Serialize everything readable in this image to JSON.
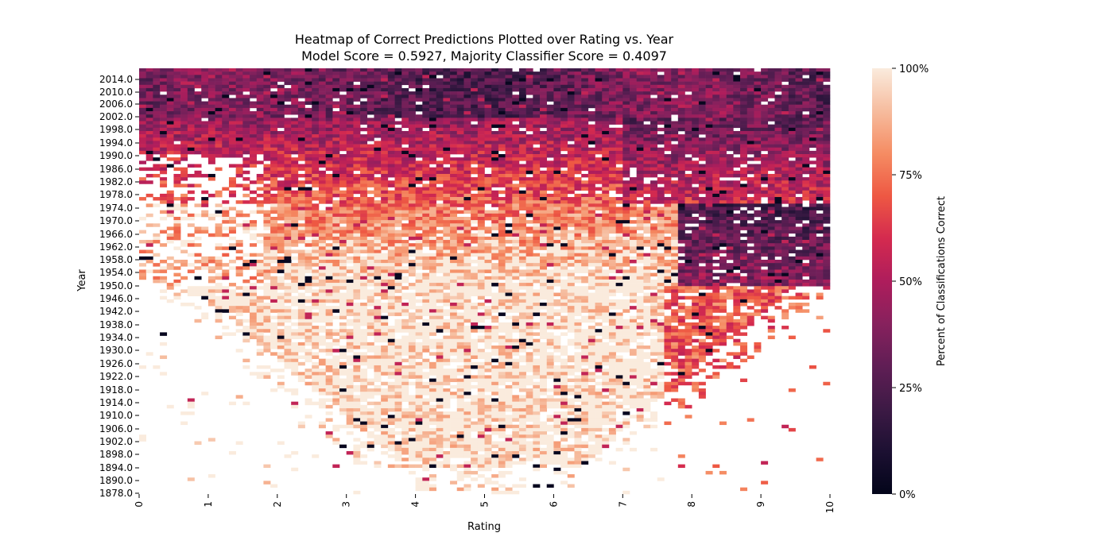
{
  "chart_data": {
    "type": "heatmap",
    "title_line1": "Heatmap of Correct Predictions Plotted over Rating vs. Year",
    "title_line2": "Model Score = 0.5927, Majority Classifier Score = 0.4097",
    "xlabel": "Rating",
    "ylabel": "Year",
    "xlim": [
      0,
      10
    ],
    "x_ticks": [
      "0",
      "1",
      "2",
      "3",
      "4",
      "5",
      "6",
      "7",
      "8",
      "9",
      "10"
    ],
    "y_ticks": [
      "2014.0",
      "2010.0",
      "2006.0",
      "2002.0",
      "1998.0",
      "1994.0",
      "1990.0",
      "1986.0",
      "1982.0",
      "1978.0",
      "1974.0",
      "1970.0",
      "1966.0",
      "1962.0",
      "1958.0",
      "1954.0",
      "1950.0",
      "1946.0",
      "1942.0",
      "1938.0",
      "1934.0",
      "1930.0",
      "1926.0",
      "1922.0",
      "1918.0",
      "1914.0",
      "1910.0",
      "1906.0",
      "1902.0",
      "1898.0",
      "1894.0",
      "1890.0",
      "1878.0"
    ],
    "colorbar": {
      "label": "Percent of Classifications Correct",
      "ticks": [
        "0%",
        "25%",
        "50%",
        "75%",
        "100%"
      ],
      "range": [
        0,
        100
      ],
      "colormap": "rocket"
    },
    "cell_grid": {
      "columns": 100,
      "rows": 129
    },
    "value_regions": [
      {
        "description_years": "2002-2017",
        "rating_range": [
          0,
          10
        ],
        "approx_percent": 30
      },
      {
        "description_years": "1975-2002",
        "rating_range": [
          2,
          10
        ],
        "approx_percent": 45
      },
      {
        "description_years": "1950-1975",
        "rating_range": [
          8,
          10
        ],
        "approx_percent": 20
      },
      {
        "description_years": "1950-1975",
        "rating_range": [
          2,
          6
        ],
        "approx_percent": 80
      },
      {
        "description_years": "1894-1950",
        "rating_range": [
          3,
          8
        ],
        "approx_percent": 97
      }
    ]
  }
}
